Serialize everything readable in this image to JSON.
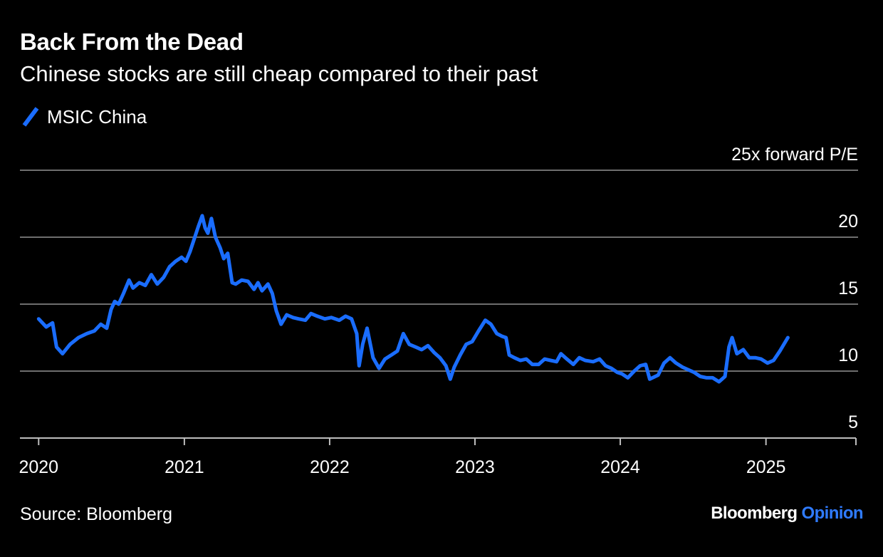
{
  "header": {
    "title": "Back From the Dead",
    "subtitle": "Chinese stocks are still cheap compared to their past"
  },
  "footer": {
    "source": "Source: Bloomberg",
    "brand_name": "Bloomberg",
    "brand_suffix": "Opinion"
  },
  "colors": {
    "background": "#000000",
    "series": "#1a6dff",
    "gridline": "#6e6e6e",
    "text": "#ffffff",
    "brand_accent": "#2f7bff"
  },
  "chart_data": {
    "type": "line",
    "title": "Back From the Dead",
    "subtitle": "Chinese stocks are still cheap compared to their past",
    "xlabel": "",
    "ylabel": "",
    "y_unit_label": "25x forward P/E",
    "ylim": [
      5,
      25
    ],
    "xlim": [
      "2019-11-15",
      "2025-08-15"
    ],
    "yticks": [
      5,
      10,
      15,
      20,
      25
    ],
    "ytick_labels": [
      "5",
      "10",
      "15",
      "20",
      "25x forward P/E"
    ],
    "xticks": [
      "2020-01-01",
      "2021-01-01",
      "2022-01-01",
      "2023-01-01",
      "2024-01-01",
      "2025-01-01"
    ],
    "xtick_labels": [
      "2020",
      "2021",
      "2022",
      "2023",
      "2024",
      "2025"
    ],
    "grid": "horizontal",
    "legend_position": "top-left",
    "series": [
      {
        "name": "MSIC China",
        "color": "#1a6dff",
        "points": [
          [
            "2020-01-01",
            13.9
          ],
          [
            "2020-01-20",
            13.3
          ],
          [
            "2020-02-05",
            13.6
          ],
          [
            "2020-02-15",
            11.8
          ],
          [
            "2020-03-01",
            11.3
          ],
          [
            "2020-03-20",
            12.0
          ],
          [
            "2020-04-10",
            12.5
          ],
          [
            "2020-05-01",
            12.8
          ],
          [
            "2020-05-20",
            13.0
          ],
          [
            "2020-06-05",
            13.5
          ],
          [
            "2020-06-20",
            13.2
          ],
          [
            "2020-07-01",
            14.6
          ],
          [
            "2020-07-10",
            15.2
          ],
          [
            "2020-07-20",
            15.0
          ],
          [
            "2020-08-01",
            15.8
          ],
          [
            "2020-08-15",
            16.8
          ],
          [
            "2020-08-25",
            16.2
          ],
          [
            "2020-09-10",
            16.6
          ],
          [
            "2020-09-25",
            16.4
          ],
          [
            "2020-10-10",
            17.2
          ],
          [
            "2020-10-25",
            16.5
          ],
          [
            "2020-11-10",
            17.0
          ],
          [
            "2020-11-25",
            17.8
          ],
          [
            "2020-12-10",
            18.2
          ],
          [
            "2020-12-25",
            18.5
          ],
          [
            "2021-01-05",
            18.2
          ],
          [
            "2021-01-15",
            18.9
          ],
          [
            "2021-01-25",
            19.8
          ],
          [
            "2021-02-05",
            20.8
          ],
          [
            "2021-02-15",
            21.6
          ],
          [
            "2021-02-22",
            20.7
          ],
          [
            "2021-03-01",
            20.3
          ],
          [
            "2021-03-10",
            21.4
          ],
          [
            "2021-03-20",
            20.0
          ],
          [
            "2021-04-01",
            19.2
          ],
          [
            "2021-04-10",
            18.4
          ],
          [
            "2021-04-20",
            18.8
          ],
          [
            "2021-05-01",
            16.6
          ],
          [
            "2021-05-10",
            16.5
          ],
          [
            "2021-05-25",
            16.8
          ],
          [
            "2021-06-10",
            16.7
          ],
          [
            "2021-06-25",
            16.1
          ],
          [
            "2021-07-05",
            16.6
          ],
          [
            "2021-07-15",
            16.0
          ],
          [
            "2021-07-30",
            16.5
          ],
          [
            "2021-08-10",
            15.8
          ],
          [
            "2021-08-20",
            14.5
          ],
          [
            "2021-09-01",
            13.5
          ],
          [
            "2021-09-15",
            14.2
          ],
          [
            "2021-10-01",
            14.0
          ],
          [
            "2021-10-15",
            13.9
          ],
          [
            "2021-11-01",
            13.8
          ],
          [
            "2021-11-15",
            14.3
          ],
          [
            "2021-12-01",
            14.1
          ],
          [
            "2021-12-20",
            13.9
          ],
          [
            "2022-01-05",
            14.0
          ],
          [
            "2022-01-25",
            13.8
          ],
          [
            "2022-02-10",
            14.1
          ],
          [
            "2022-02-25",
            13.9
          ],
          [
            "2022-03-10",
            12.8
          ],
          [
            "2022-03-16",
            10.4
          ],
          [
            "2022-03-25",
            12.0
          ],
          [
            "2022-04-05",
            13.2
          ],
          [
            "2022-04-20",
            11.0
          ],
          [
            "2022-05-05",
            10.2
          ],
          [
            "2022-05-20",
            10.9
          ],
          [
            "2022-06-05",
            11.2
          ],
          [
            "2022-06-20",
            11.5
          ],
          [
            "2022-07-05",
            12.8
          ],
          [
            "2022-07-20",
            12.0
          ],
          [
            "2022-08-05",
            11.8
          ],
          [
            "2022-08-20",
            11.6
          ],
          [
            "2022-09-05",
            11.9
          ],
          [
            "2022-09-20",
            11.4
          ],
          [
            "2022-10-05",
            11.0
          ],
          [
            "2022-10-20",
            10.4
          ],
          [
            "2022-10-31",
            9.4
          ],
          [
            "2022-11-10",
            10.3
          ],
          [
            "2022-11-25",
            11.2
          ],
          [
            "2022-12-10",
            12.0
          ],
          [
            "2022-12-25",
            12.2
          ],
          [
            "2023-01-10",
            13.0
          ],
          [
            "2023-01-27",
            13.8
          ],
          [
            "2023-02-10",
            13.5
          ],
          [
            "2023-02-25",
            12.8
          ],
          [
            "2023-03-10",
            12.6
          ],
          [
            "2023-03-20",
            12.5
          ],
          [
            "2023-03-28",
            11.2
          ],
          [
            "2023-04-10",
            11.0
          ],
          [
            "2023-04-25",
            10.8
          ],
          [
            "2023-05-10",
            10.9
          ],
          [
            "2023-05-25",
            10.5
          ],
          [
            "2023-06-10",
            10.5
          ],
          [
            "2023-06-25",
            10.9
          ],
          [
            "2023-07-10",
            10.8
          ],
          [
            "2023-07-25",
            10.7
          ],
          [
            "2023-08-05",
            11.3
          ],
          [
            "2023-08-20",
            10.9
          ],
          [
            "2023-09-05",
            10.5
          ],
          [
            "2023-09-20",
            11.0
          ],
          [
            "2023-10-05",
            10.8
          ],
          [
            "2023-10-25",
            10.7
          ],
          [
            "2023-11-10",
            10.9
          ],
          [
            "2023-11-25",
            10.4
          ],
          [
            "2023-12-10",
            10.2
          ],
          [
            "2023-12-25",
            9.9
          ],
          [
            "2024-01-05",
            9.8
          ],
          [
            "2024-01-20",
            9.5
          ],
          [
            "2024-02-05",
            10.0
          ],
          [
            "2024-02-20",
            10.4
          ],
          [
            "2024-03-05",
            10.5
          ],
          [
            "2024-03-15",
            9.4
          ],
          [
            "2024-04-05",
            9.7
          ],
          [
            "2024-04-20",
            10.6
          ],
          [
            "2024-05-05",
            11.0
          ],
          [
            "2024-05-20",
            10.6
          ],
          [
            "2024-06-05",
            10.3
          ],
          [
            "2024-06-20",
            10.1
          ],
          [
            "2024-07-05",
            9.9
          ],
          [
            "2024-07-20",
            9.6
          ],
          [
            "2024-08-05",
            9.5
          ],
          [
            "2024-08-20",
            9.5
          ],
          [
            "2024-09-05",
            9.2
          ],
          [
            "2024-09-20",
            9.6
          ],
          [
            "2024-09-30",
            11.8
          ],
          [
            "2024-10-08",
            12.5
          ],
          [
            "2024-10-20",
            11.3
          ],
          [
            "2024-11-05",
            11.6
          ],
          [
            "2024-11-20",
            11.0
          ],
          [
            "2024-12-05",
            11.0
          ],
          [
            "2024-12-20",
            10.9
          ],
          [
            "2025-01-05",
            10.6
          ],
          [
            "2025-01-20",
            10.8
          ],
          [
            "2025-02-05",
            11.5
          ],
          [
            "2025-02-15",
            12.0
          ],
          [
            "2025-02-25",
            12.5
          ]
        ]
      }
    ]
  }
}
